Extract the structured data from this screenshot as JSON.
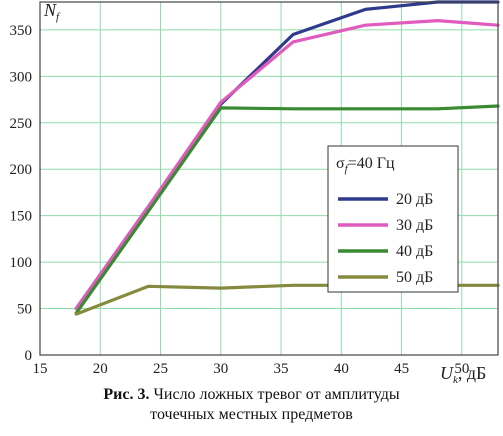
{
  "chart_data": {
    "type": "line",
    "title": "",
    "xlabel_main": "U",
    "xlabel_sub": "k",
    "xlabel_unit": ", дБ",
    "ylabel_main": "N",
    "ylabel_sub": "f",
    "xlim": [
      15,
      53
    ],
    "ylim": [
      0,
      380
    ],
    "x_ticks": [
      15,
      20,
      25,
      30,
      35,
      40,
      45,
      50
    ],
    "y_ticks": [
      0,
      50,
      100,
      150,
      200,
      250,
      300,
      350
    ],
    "grid": true,
    "legend_title_main": "σ",
    "legend_title_sub": "f",
    "legend_title_rest": "=40 Гц",
    "legend_position": "right",
    "series": [
      {
        "name": "20 дБ",
        "color": "#2e3a8c",
        "x": [
          18,
          24,
          30,
          36,
          42,
          48,
          53
        ],
        "y": [
          50,
          160,
          270,
          345,
          372,
          380,
          380
        ]
      },
      {
        "name": "30 дБ",
        "color": "#e05bbd",
        "x": [
          18,
          24,
          30,
          36,
          42,
          48,
          53
        ],
        "y": [
          50,
          160,
          272,
          337,
          355,
          360,
          355
        ]
      },
      {
        "name": "40 дБ",
        "color": "#3a8a32",
        "x": [
          18,
          24,
          30,
          36,
          42,
          48,
          53
        ],
        "y": [
          45,
          155,
          266,
          265,
          265,
          265,
          268
        ]
      },
      {
        "name": "50 дБ",
        "color": "#858a3e",
        "x": [
          18,
          24,
          30,
          36,
          42,
          48,
          53
        ],
        "y": [
          44,
          74,
          72,
          75,
          75,
          75,
          75
        ]
      }
    ]
  },
  "caption": {
    "bold": "Рис. 3.",
    "line1": " Число ложных тревог от амплитуды",
    "line2": "точечных местных предметов"
  }
}
